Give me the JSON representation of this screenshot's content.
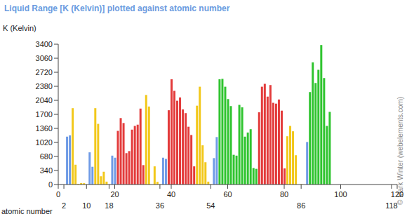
{
  "chart_data": {
    "type": "bar",
    "title": "Liquid Range [K (Kelvin)] plotted against atomic number",
    "xlabel": "atomic number",
    "ylabel": "K (Kelvin)",
    "annotations": [
      "© Mark Winter (webelements.com)"
    ],
    "x": [
      1,
      2,
      3,
      4,
      5,
      6,
      7,
      8,
      9,
      10,
      11,
      12,
      13,
      14,
      15,
      16,
      17,
      18,
      19,
      20,
      21,
      22,
      23,
      24,
      25,
      26,
      27,
      28,
      29,
      30,
      31,
      32,
      33,
      34,
      35,
      36,
      37,
      38,
      39,
      40,
      41,
      42,
      43,
      44,
      45,
      46,
      47,
      48,
      49,
      50,
      51,
      52,
      53,
      54,
      55,
      56,
      57,
      58,
      59,
      60,
      61,
      62,
      63,
      64,
      65,
      66,
      67,
      68,
      69,
      70,
      71,
      72,
      73,
      74,
      75,
      76,
      77,
      78,
      79,
      80,
      81,
      82,
      83,
      84,
      85,
      86,
      87,
      88,
      89,
      90,
      91,
      92,
      93,
      94,
      95,
      96
    ],
    "values": [
      6,
      null,
      1160,
      1190,
      1850,
      480,
      14,
      36,
      32,
      3,
      780,
      430,
      1850,
      1470,
      200,
      310,
      70,
      3,
      700,
      650,
      1300,
      1610,
      1490,
      760,
      810,
      1330,
      1420,
      1450,
      1840,
      470,
      2170,
      1890,
      null,
      440,
      66,
      3,
      650,
      620,
      1800,
      2550,
      2270,
      2030,
      2110,
      1820,
      1730,
      1400,
      1200,
      440,
      1910,
      2370,
      950,
      540,
      70,
      4,
      640,
      1150,
      2550,
      2560,
      2370,
      2070,
      1900,
      720,
      700,
      1930,
      1870,
      1160,
      1260,
      1340,
      400,
      380,
      1750,
      2370,
      2440,
      2130,
      2410,
      1980,
      1960,
      2060,
      1790,
      390,
      1170,
      1420,
      1290,
      710,
      null,
      9,
      null,
      1030,
      2240,
      2960,
      2460,
      2780,
      3380,
      2580,
      1420,
      1760
    ],
    "colors": [
      "#6f9be6",
      "#6f9be6",
      "#6f9be6",
      "#6f9be6",
      "#f2c81a",
      "#f2c81a",
      "#f2c81a",
      "#f2c81a",
      "#f2c81a",
      "#f2c81a",
      "#6f9be6",
      "#6f9be6",
      "#f2c81a",
      "#f2c81a",
      "#f2c81a",
      "#f2c81a",
      "#f2c81a",
      "#f2c81a",
      "#6f9be6",
      "#6f9be6",
      "#e33b3b",
      "#e33b3b",
      "#e33b3b",
      "#e33b3b",
      "#e33b3b",
      "#e33b3b",
      "#e33b3b",
      "#e33b3b",
      "#e33b3b",
      "#e33b3b",
      "#f2c81a",
      "#f2c81a",
      "#f2c81a",
      "#f2c81a",
      "#f2c81a",
      "#f2c81a",
      "#6f9be6",
      "#6f9be6",
      "#e33b3b",
      "#e33b3b",
      "#e33b3b",
      "#e33b3b",
      "#e33b3b",
      "#e33b3b",
      "#e33b3b",
      "#e33b3b",
      "#e33b3b",
      "#e33b3b",
      "#f2c81a",
      "#f2c81a",
      "#f2c81a",
      "#f2c81a",
      "#f2c81a",
      "#f2c81a",
      "#6f9be6",
      "#6f9be6",
      "#2fc42f",
      "#2fc42f",
      "#2fc42f",
      "#2fc42f",
      "#2fc42f",
      "#2fc42f",
      "#2fc42f",
      "#2fc42f",
      "#2fc42f",
      "#2fc42f",
      "#2fc42f",
      "#2fc42f",
      "#2fc42f",
      "#2fc42f",
      "#e33b3b",
      "#e33b3b",
      "#e33b3b",
      "#e33b3b",
      "#e33b3b",
      "#e33b3b",
      "#e33b3b",
      "#e33b3b",
      "#e33b3b",
      "#e33b3b",
      "#f2c81a",
      "#f2c81a",
      "#f2c81a",
      "#f2c81a",
      "#f2c81a",
      "#f2c81a",
      "#6f9be6",
      "#6f9be6",
      "#2fc42f",
      "#2fc42f",
      "#2fc42f",
      "#2fc42f",
      "#2fc42f",
      "#2fc42f",
      "#2fc42f",
      "#2fc42f"
    ],
    "xlim": [
      0,
      120
    ],
    "xticks": [
      0,
      2,
      10,
      18,
      20,
      36,
      40,
      54,
      60,
      80,
      86,
      100,
      118,
      120
    ],
    "ylim": [
      0,
      3400
    ],
    "yticks": [
      0,
      340,
      680,
      1020,
      1360,
      1700,
      2040,
      2380,
      2720,
      3060,
      3400
    ],
    "grid": false
  }
}
